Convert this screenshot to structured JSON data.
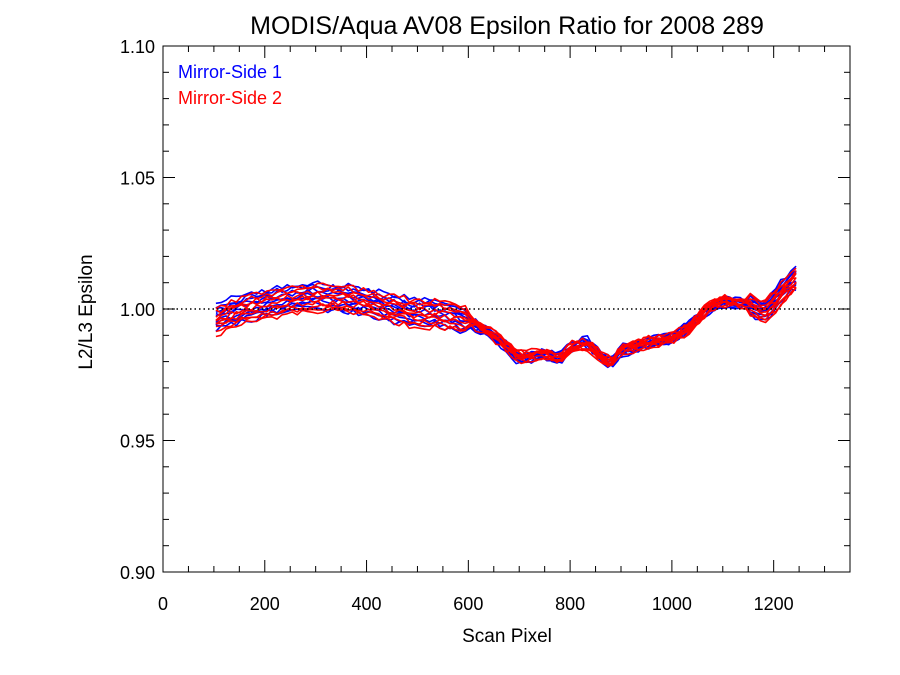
{
  "chart_data": {
    "type": "line",
    "title": "MODIS/Aqua AV08 Epsilon Ratio for 2008 289",
    "xlabel": "Scan Pixel",
    "ylabel": "L2/L3 Epsilon",
    "xlim": [
      0,
      1350
    ],
    "ylim": [
      0.9,
      1.1
    ],
    "xticks": [
      0,
      200,
      400,
      600,
      800,
      1000,
      1200
    ],
    "xtick_labels": [
      "0",
      "200",
      "400",
      "600",
      "800",
      "1000",
      "1200"
    ],
    "yticks": [
      0.9,
      0.95,
      1.0,
      1.05,
      1.1
    ],
    "ytick_labels": [
      "0.90",
      "0.95",
      "1.00",
      "1.05",
      "1.10"
    ],
    "reference_line": {
      "y": 1.0,
      "style": "dotted"
    },
    "legend": {
      "placement": "top-left"
    },
    "series": [
      {
        "name": "Mirror-Side 1",
        "color": "#0000ff",
        "x": [
          104,
          150,
          200,
          250,
          300,
          350,
          400,
          450,
          500,
          550,
          600,
          650,
          700,
          750,
          780,
          800,
          830,
          850,
          880,
          900,
          950,
          1000,
          1030,
          1060,
          1080,
          1100,
          1150,
          1180,
          1200,
          1230,
          1250
        ],
        "y": [
          0.997,
          1.0,
          1.002,
          1.004,
          1.005,
          1.004,
          1.003,
          1.0,
          0.999,
          0.998,
          0.995,
          0.99,
          0.981,
          0.983,
          0.981,
          0.985,
          0.988,
          0.984,
          0.979,
          0.984,
          0.987,
          0.989,
          0.993,
          0.998,
          1.001,
          1.003,
          1.002,
          0.999,
          1.003,
          1.01,
          1.013
        ]
      },
      {
        "name": "Mirror-Side 2",
        "color": "#ff0000",
        "x": [
          104,
          150,
          200,
          250,
          300,
          350,
          400,
          450,
          500,
          550,
          600,
          650,
          700,
          750,
          780,
          800,
          830,
          850,
          880,
          900,
          950,
          1000,
          1030,
          1060,
          1080,
          1100,
          1150,
          1180,
          1200,
          1230,
          1250
        ],
        "y": [
          0.995,
          0.999,
          1.001,
          1.003,
          1.004,
          1.004,
          1.002,
          1.0,
          0.998,
          0.998,
          0.996,
          0.99,
          0.982,
          0.983,
          0.981,
          0.985,
          0.987,
          0.984,
          0.979,
          0.985,
          0.987,
          0.989,
          0.992,
          0.998,
          1.002,
          1.003,
          1.002,
          0.999,
          1.002,
          1.009,
          1.012
        ]
      }
    ]
  }
}
